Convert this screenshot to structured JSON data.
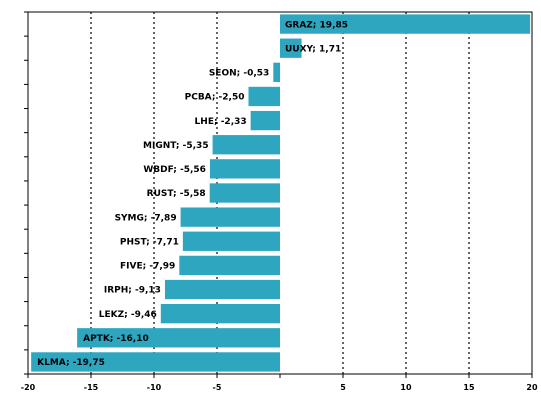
{
  "chart_data": {
    "type": "bar",
    "orientation": "horizontal",
    "categories": [
      "GRAZ",
      "UUXY",
      "SEON",
      "PCBA",
      "LHE",
      "MIGNT",
      "WBDF",
      "RUST",
      "SYMG",
      "PHST",
      "FIVE",
      "IRPH",
      "LEKZ",
      "APTK",
      "KLMA"
    ],
    "values": [
      19.85,
      1.71,
      -0.53,
      -2.5,
      -2.33,
      -5.35,
      -5.56,
      -5.58,
      -7.89,
      -7.71,
      -7.99,
      -9.13,
      -9.46,
      -16.1,
      -19.75
    ],
    "labels": [
      "GRAZ; 19,85",
      "UUXY; 1,71",
      "SEON; -0,53",
      "PCBA; -2,50",
      "LHE; -2,33",
      "MIGNT; -5,35",
      "WBDF; -5,56",
      "RUST; -5,58",
      "SYMG; -7,89",
      "PHST; -7,71",
      "FIVE; -7,99",
      "IRPH; -9,13",
      "LEKZ; -9,46",
      "APTK; -16,10",
      "KLMA; -19,75"
    ],
    "xlim": [
      -20,
      20
    ],
    "xticks": [
      -20,
      -15,
      -10,
      -5,
      0,
      5,
      10,
      15,
      20
    ],
    "xtick_labels": [
      "-20",
      "-15",
      "-10",
      "-5",
      "",
      "5",
      "10",
      "15",
      "20"
    ],
    "grid": "vertical dotted",
    "title": "",
    "xlabel": "",
    "ylabel": "",
    "bar_color": "#2ea6bf"
  }
}
